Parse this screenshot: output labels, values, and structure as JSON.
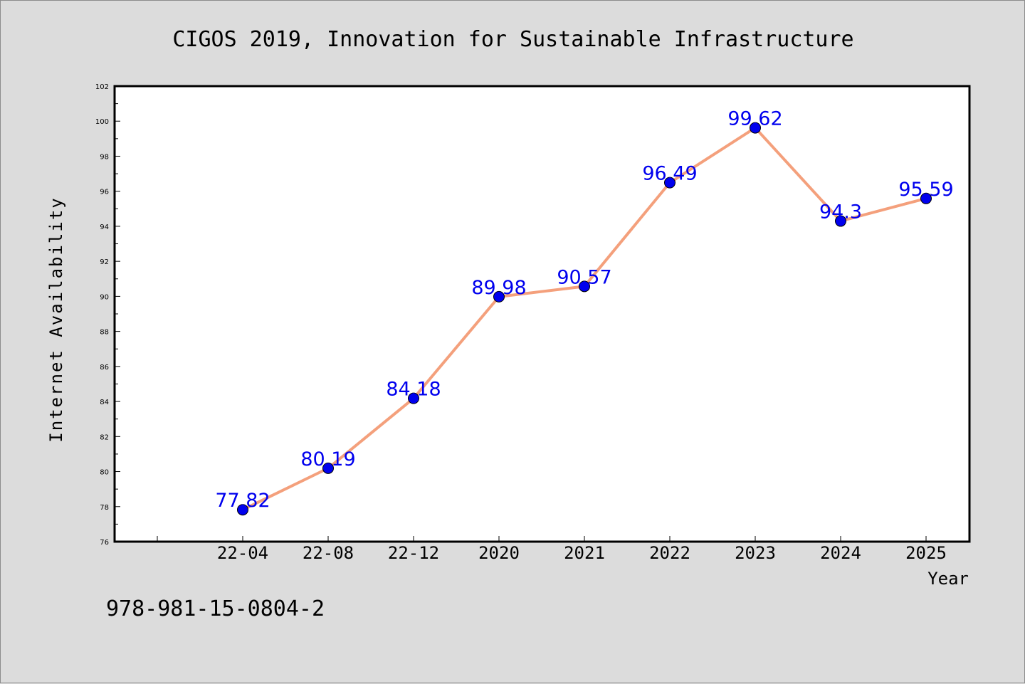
{
  "chart_data": {
    "type": "line",
    "title": "CIGOS 2019, Innovation for Sustainable Infrastructure",
    "xlabel": "Year",
    "ylabel": "Internet Availability",
    "categories": [
      "22-04",
      "22-08",
      "22-12",
      "2020",
      "2021",
      "2022",
      "2023",
      "2024",
      "2025"
    ],
    "series": [
      {
        "values": [
          77.82,
          80.19,
          84.18,
          89.98,
          90.57,
          96.49,
          99.62,
          94.3,
          95.59
        ],
        "labels": [
          "77.82",
          "80.19",
          "84.18",
          "89.98",
          "90.57",
          "96.49",
          "99.62",
          "94.3",
          "95.59"
        ],
        "line_color": "#f4a07c",
        "marker_color": "#0000ee",
        "label_color": "#0000ee"
      }
    ],
    "ylim": [
      76,
      102
    ],
    "yticks": [
      "76",
      "78",
      "80",
      "82",
      "84",
      "86",
      "88",
      "90",
      "92",
      "94",
      "96",
      "98",
      "100",
      "102"
    ],
    "grid": false,
    "legend": "none"
  },
  "footer": {
    "isbn": "978-981-15-0804-2"
  },
  "colors": {
    "background": "#dcdcdc",
    "plot_background": "#ffffff",
    "axis": "#000000"
  }
}
